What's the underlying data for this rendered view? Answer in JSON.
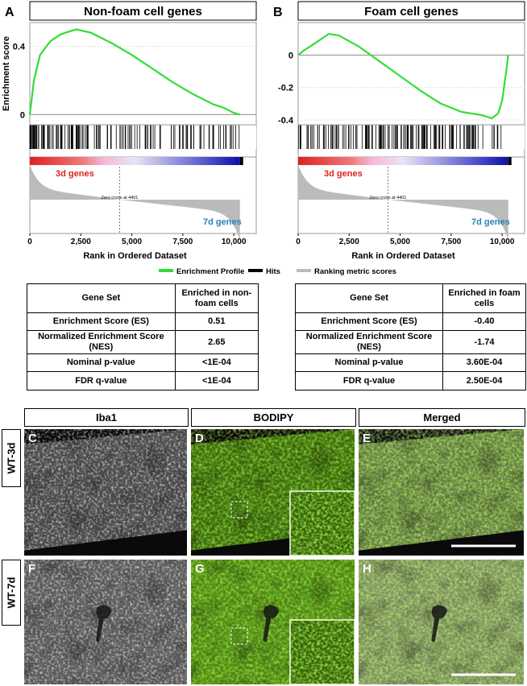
{
  "chart_data": [
    {
      "type": "line",
      "panel": "A",
      "title": "Non-foam cell genes",
      "y_label": "Enrichment score",
      "x_label": "Rank in Ordered Dataset",
      "x": [
        0,
        200,
        500,
        1000,
        1500,
        2000,
        2300,
        3000,
        4000,
        5000,
        6000,
        7000,
        8000,
        9000,
        9500,
        10000,
        10300
      ],
      "series": [
        {
          "color": "#33dd33",
          "values": [
            0,
            0.2,
            0.35,
            0.43,
            0.47,
            0.49,
            0.5,
            0.48,
            0.42,
            0.35,
            0.27,
            0.19,
            0.12,
            0.06,
            0.04,
            0.01,
            0
          ]
        }
      ],
      "xlim": [
        0,
        11100
      ],
      "ylim": [
        -0.06,
        0.54
      ],
      "xticks": [
        0,
        {
          "value": 2500,
          "label": "2,500"
        },
        {
          "value": 5000,
          "label": "5,000"
        },
        {
          "value": 7500,
          "label": "7,500"
        },
        {
          "value": 10000,
          "label": "10,000"
        }
      ],
      "yticks": [
        0,
        0.4
      ],
      "up_label": "3d genes",
      "down_label": "7d genes",
      "zero_cross": {
        "value": 4401,
        "label": "Zero cross at 4401"
      }
    },
    {
      "type": "line",
      "panel": "B",
      "title": "Foam cell genes",
      "x_label": "Rank in Ordered Dataset",
      "x": [
        0,
        300,
        800,
        1500,
        2000,
        3000,
        4000,
        5000,
        6000,
        7000,
        8000,
        9000,
        9500,
        9800,
        10000,
        10200,
        10300
      ],
      "series": [
        {
          "color": "#33dd33",
          "values": [
            0,
            0.03,
            0.07,
            0.13,
            0.12,
            0.05,
            -0.04,
            -0.13,
            -0.22,
            -0.3,
            -0.35,
            -0.37,
            -0.39,
            -0.36,
            -0.28,
            -0.1,
            0
          ]
        }
      ],
      "xlim": [
        0,
        11100
      ],
      "ylim": [
        -0.43,
        0.2
      ],
      "xticks": [
        0,
        {
          "value": 2500,
          "label": "2,500"
        },
        {
          "value": 5000,
          "label": "5,000"
        },
        {
          "value": 7500,
          "label": "7,500"
        },
        {
          "value": 10000,
          "label": "10,000"
        }
      ],
      "yticks": [
        0,
        -0.2,
        -0.4
      ],
      "up_label": "3d genes",
      "down_label": "7d genes",
      "zero_cross": {
        "value": 4401,
        "label": "Zero cross at 4401"
      }
    }
  ],
  "legend": [
    {
      "name": "Enrichment Profile",
      "color": "#33dd33"
    },
    {
      "name": "Hits",
      "color": "#000000"
    },
    {
      "name": "Ranking metric scores",
      "color": "#bbbbbb"
    }
  ],
  "tables": [
    {
      "header": [
        "Gene Set",
        "Enriched in non-foam cells"
      ],
      "rows": [
        [
          "Enrichment Score (ES)",
          "0.51"
        ],
        [
          "Normalized Enrichment Score (NES)",
          "2.65"
        ],
        [
          "Nominal p-value",
          "<1E-04"
        ],
        [
          "FDR q-value",
          "<1E-04"
        ]
      ]
    },
    {
      "header": [
        "Gene Set",
        "Enriched in foam cells"
      ],
      "rows": [
        [
          "Enrichment Score (ES)",
          "-0.40"
        ],
        [
          "Normalized Enrichment Score (NES)",
          "-1.74"
        ],
        [
          "Nominal p-value",
          "3.60E-04"
        ],
        [
          "FDR q-value",
          "2.50E-04"
        ]
      ]
    }
  ],
  "images": {
    "columns": [
      "Iba1",
      "BODIPY",
      "Merged"
    ],
    "rows": [
      "WT-3d",
      "WT-7d"
    ],
    "panels": [
      [
        "C",
        "D",
        "E"
      ],
      [
        "F",
        "G",
        "H"
      ]
    ]
  }
}
